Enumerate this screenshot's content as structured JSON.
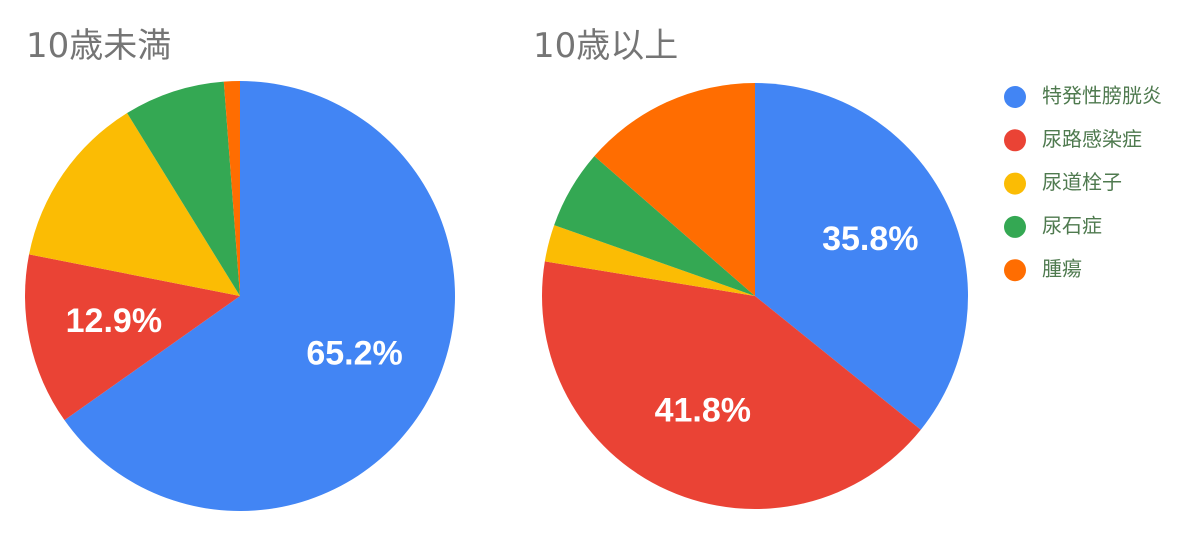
{
  "legend": {
    "labels": [
      "特発性膀胱炎",
      "尿路感染症",
      "尿道栓子",
      "尿石症",
      "腫瘍"
    ],
    "colors": [
      "#4285f4",
      "#ea4335",
      "#fbbc04",
      "#34a853",
      "#ff6d01"
    ]
  },
  "chart_data": [
    {
      "type": "pie",
      "title": "10歳未満",
      "values": [
        65.2,
        12.9,
        13.1,
        7.6,
        1.2
      ],
      "value_labels": [
        "65.2%",
        "12.9%",
        null,
        null,
        null
      ]
    },
    {
      "type": "pie",
      "title": "10歳以上",
      "values": [
        35.8,
        41.8,
        2.8,
        6.0,
        13.6
      ],
      "value_labels": [
        "35.8%",
        "41.8%",
        null,
        null,
        null
      ]
    }
  ]
}
